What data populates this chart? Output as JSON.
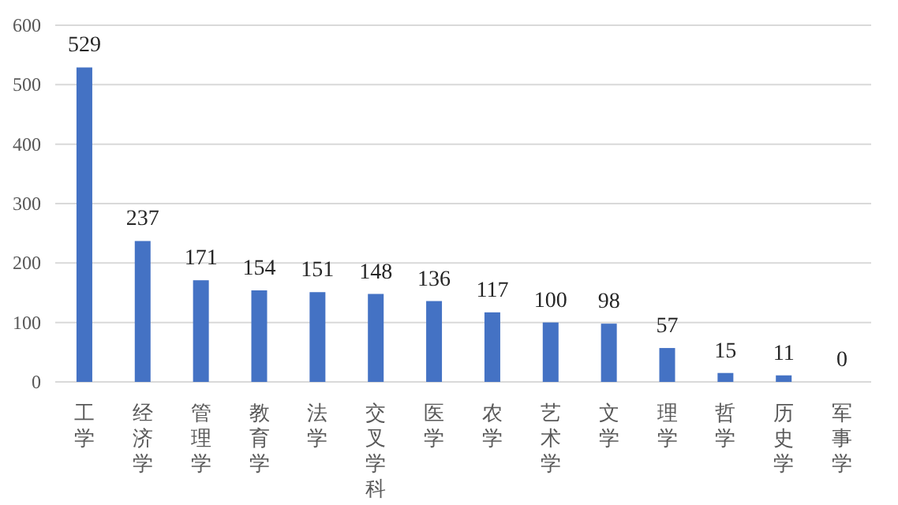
{
  "chart_data": {
    "type": "bar",
    "categories": [
      "工学",
      "经济学",
      "管理学",
      "教育学",
      "法学",
      "交叉学科",
      "医学",
      "农学",
      "艺术学",
      "文学",
      "理学",
      "哲学",
      "历史学",
      "军事学"
    ],
    "values": [
      529,
      237,
      171,
      154,
      151,
      148,
      136,
      117,
      100,
      98,
      57,
      15,
      11,
      0
    ],
    "color": "#4472c4",
    "ylim": [
      0,
      600
    ],
    "yticks": [
      0,
      100,
      200,
      300,
      400,
      500,
      600
    ],
    "grid": "y",
    "data_labels": true
  }
}
